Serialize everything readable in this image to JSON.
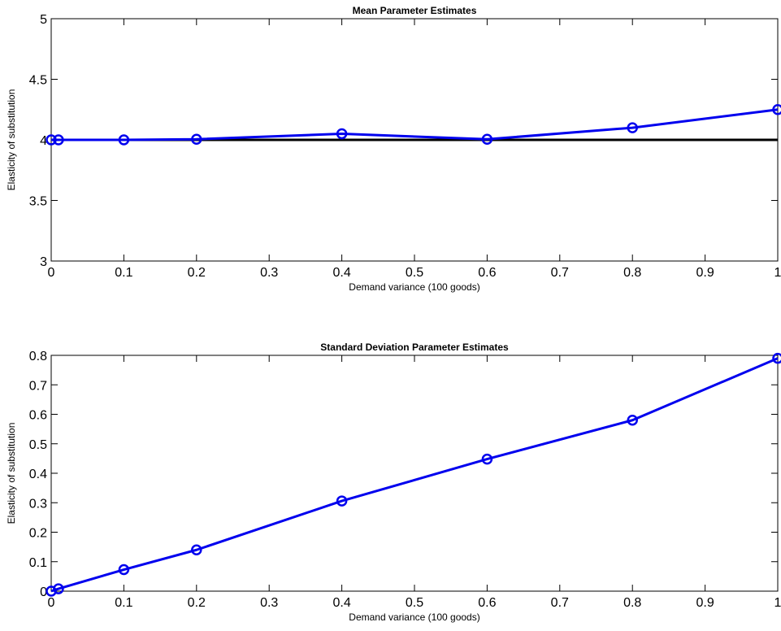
{
  "chart_data": [
    {
      "type": "line",
      "title": "Mean Parameter Estimates",
      "xlabel": "Demand variance (100 goods)",
      "ylabel": "Elasticity of substitution",
      "xlim": [
        0,
        1
      ],
      "ylim": [
        3,
        5
      ],
      "x_ticks": [
        "0",
        "0.1",
        "0.2",
        "0.3",
        "0.4",
        "0.5",
        "0.6",
        "0.7",
        "0.8",
        "0.9",
        "1"
      ],
      "y_ticks": [
        "3",
        "3.5",
        "4",
        "4.5",
        "5"
      ],
      "grid": false,
      "reference_line": {
        "y": 4,
        "color": "#000000"
      },
      "series": [
        {
          "x": [
            0,
            0.01,
            0.1,
            0.2,
            0.4,
            0.6,
            0.8,
            1.0
          ],
          "y": [
            4.0,
            4.0,
            4.0,
            4.005,
            4.05,
            4.005,
            4.1,
            4.25
          ],
          "color": "#0000ee",
          "marker": "circle"
        }
      ]
    },
    {
      "type": "line",
      "title": "Standard Deviation Parameter Estimates",
      "xlabel": "Demand variance (100 goods)",
      "ylabel": "Elasticity of substitution",
      "xlim": [
        0,
        1
      ],
      "ylim": [
        0,
        0.8
      ],
      "x_ticks": [
        "0",
        "0.1",
        "0.2",
        "0.3",
        "0.4",
        "0.5",
        "0.6",
        "0.7",
        "0.8",
        "0.9",
        "1"
      ],
      "y_ticks": [
        "0",
        "0.1",
        "0.2",
        "0.3",
        "0.4",
        "0.5",
        "0.6",
        "0.7",
        "0.8"
      ],
      "grid": false,
      "series": [
        {
          "x": [
            0,
            0.01,
            0.1,
            0.2,
            0.4,
            0.6,
            0.8,
            1.0
          ],
          "y": [
            0.0,
            0.008,
            0.073,
            0.14,
            0.306,
            0.448,
            0.58,
            0.79
          ],
          "color": "#0000ee",
          "marker": "circle"
        }
      ]
    }
  ]
}
